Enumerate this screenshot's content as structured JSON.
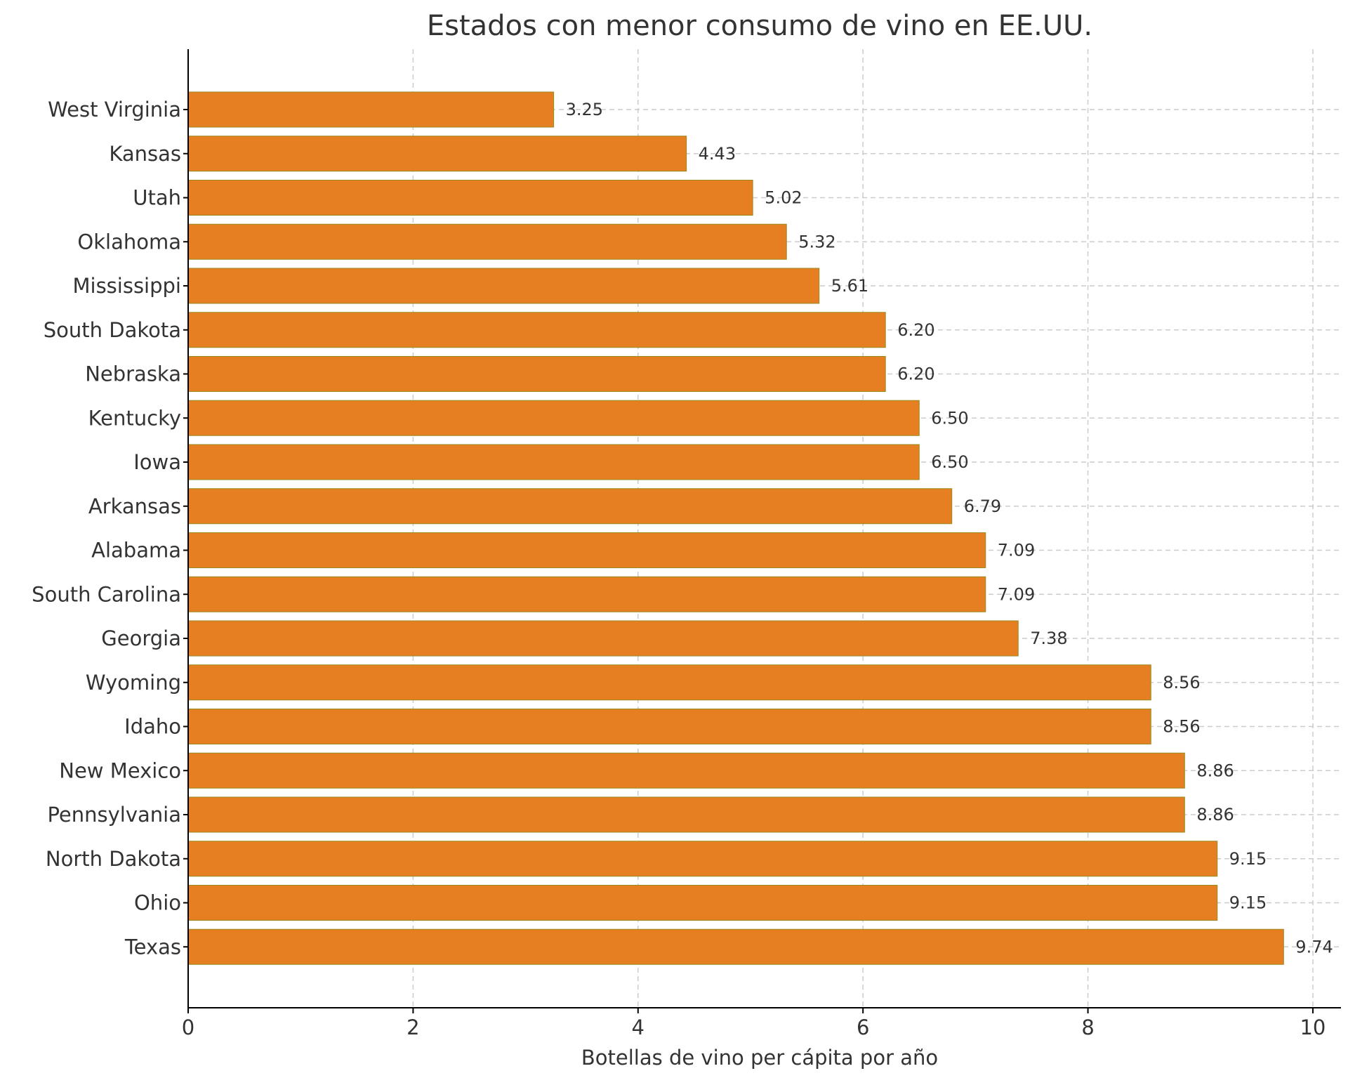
{
  "chart_data": {
    "type": "bar",
    "orientation": "horizontal",
    "title": "Estados con menor consumo de vino en EE.UU.",
    "xlabel": "Botellas de vino per cápita por año",
    "ylabel": "",
    "xlim": [
      0,
      10.25
    ],
    "x_ticks": [
      0,
      2,
      4,
      6,
      8,
      10
    ],
    "grid": true,
    "bar_color": "#E67E22",
    "bar_edge_color": "#9A8A1E",
    "categories": [
      "West Virginia",
      "Kansas",
      "Utah",
      "Oklahoma",
      "Mississippi",
      "South Dakota",
      "Nebraska",
      "Kentucky",
      "Iowa",
      "Arkansas",
      "Alabama",
      "South Carolina",
      "Georgia",
      "Wyoming",
      "Idaho",
      "New Mexico",
      "Pennsylvania",
      "North Dakota",
      "Ohio",
      "Texas"
    ],
    "values": [
      3.25,
      4.43,
      5.02,
      5.32,
      5.61,
      6.2,
      6.2,
      6.5,
      6.5,
      6.79,
      7.09,
      7.09,
      7.38,
      8.56,
      8.56,
      8.86,
      8.86,
      9.15,
      9.15,
      9.74
    ],
    "value_labels": [
      "3.25",
      "4.43",
      "5.02",
      "5.32",
      "5.61",
      "6.20",
      "6.20",
      "6.50",
      "6.50",
      "6.79",
      "7.09",
      "7.09",
      "7.38",
      "8.56",
      "8.56",
      "8.86",
      "8.86",
      "9.15",
      "9.15",
      "9.74"
    ]
  }
}
